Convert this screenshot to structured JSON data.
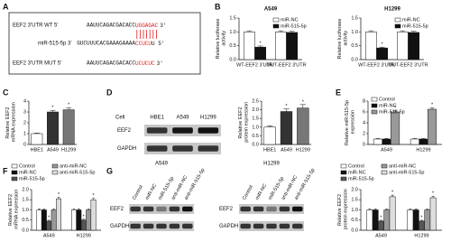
{
  "panel_labels": [
    "A",
    "B",
    "C",
    "D",
    "E",
    "F",
    "G"
  ],
  "sequences": [
    {
      "label": "EEF2 3'UTR WT 5'",
      "before": "AAUUCAGACGACACC",
      "site": "UGGAGAC",
      "after": "3'"
    },
    {
      "label": "miR-515-5p 3'",
      "before": "GUCUUUCACGAAAGAAAA",
      "site": "CCUCU",
      "after": "U 5'"
    },
    {
      "label": "EEF2 3'UTR MUT 5'",
      "before": "AAUUCAGACGACACC",
      "site": "UCUCUC",
      "after": "3'"
    }
  ],
  "blots": [
    {
      "column_label": "Cell",
      "lanes": [
        "HBE1",
        "A549",
        "H1299"
      ],
      "rows": [
        "EEF2",
        "GAPDH"
      ]
    },
    {
      "title": "A549",
      "lanes": [
        "Control",
        "miR-NC",
        "miR-515-5p",
        "anti-miR-NC",
        "anti-miR-515-5p"
      ],
      "rows": [
        "EEF2",
        "GAPDH"
      ]
    },
    {
      "title": "H1299",
      "lanes": [
        "Control",
        "miR-NC",
        "miR-515-5p",
        "anti-miR-NC",
        "anti-miR-515-5p"
      ],
      "rows": [
        "EEF2",
        "GAPDH"
      ]
    }
  ],
  "chart_data": [
    {
      "type": "bar",
      "title": "A549",
      "y_label": "Relative luciferase activity",
      "categories": [
        "WT-EEF2 3'UTR",
        "MUT-EEF2 3'UTR"
      ],
      "series": [
        {
          "name": "miR-NC",
          "color": "#ffffff",
          "values": [
            1.0,
            1.0
          ],
          "errors": [
            0.04,
            0.04
          ]
        },
        {
          "name": "miR-515-5p",
          "color": "#111111",
          "values": [
            0.45,
            0.98
          ],
          "errors": [
            0.04,
            0.04
          ]
        }
      ],
      "ylim": [
        0,
        1.5
      ],
      "yticks": [
        {
          "value": 0,
          "label": "0.0"
        },
        0.5,
        {
          "value": 1,
          "label": "1.0"
        },
        1.5
      ],
      "legend": "upper right",
      "annotations": [
        {
          "text": "*",
          "category": "WT-EEF2 3'UTR",
          "series": "miR-515-5p"
        }
      ]
    },
    {
      "type": "bar",
      "title": "H1299",
      "y_label": "Relative luciferase activity",
      "categories": [
        "WT-EEF2 3'UTR",
        "MUT-EEF2 3'UTR"
      ],
      "series": [
        {
          "name": "miR-NC",
          "color": "#ffffff",
          "values": [
            1.0,
            1.0
          ],
          "errors": [
            0.04,
            0.04
          ]
        },
        {
          "name": "miR-515-5p",
          "color": "#111111",
          "values": [
            0.42,
            0.98
          ],
          "errors": [
            0.03,
            0.04
          ]
        }
      ],
      "ylim": [
        0,
        1.5
      ],
      "yticks": [
        {
          "value": 0,
          "label": "0.0"
        },
        0.5,
        {
          "value": 1,
          "label": "1.0"
        },
        1.5
      ],
      "legend": "upper right",
      "annotations": [
        {
          "text": "*",
          "category": "WT-EEF2 3'UTR",
          "series": "miR-515-5p"
        }
      ]
    },
    {
      "type": "bar",
      "y_label": "Relative EEF2 mRNA expression",
      "categories": [
        "HBE1",
        "A549",
        "H1299"
      ],
      "values": [
        1.0,
        3.0,
        3.2
      ],
      "errors": [
        0.05,
        0.15,
        0.2
      ],
      "colors": [
        "#ffffff",
        "#333333",
        "#777777"
      ],
      "ylim": [
        0,
        4
      ],
      "yticks": [
        0,
        1,
        2,
        3,
        4
      ],
      "annotations": [
        {
          "text": "*",
          "category": "A549"
        },
        {
          "text": "*",
          "category": "H1299"
        }
      ]
    },
    {
      "type": "bar",
      "y_label": "Relative EEF2 protein expression",
      "categories": [
        "HBE1",
        "A549",
        "H1299"
      ],
      "values": [
        1.0,
        1.9,
        2.1
      ],
      "errors": [
        0.08,
        0.15,
        0.2
      ],
      "colors": [
        "#ffffff",
        "#333333",
        "#777777"
      ],
      "ylim": [
        0,
        2.5
      ],
      "yticks": [
        {
          "value": 0,
          "label": "0.0"
        },
        0.5,
        {
          "value": 1,
          "label": "1.0"
        },
        1.5,
        {
          "value": 2,
          "label": "2.0"
        },
        2.5
      ],
      "annotations": [
        {
          "text": "*",
          "category": "A549"
        },
        {
          "text": "*",
          "category": "H1299"
        }
      ]
    },
    {
      "type": "bar",
      "y_label": "Relative miR-515-5p expression",
      "categories": [
        "A549",
        "H1299"
      ],
      "series": [
        {
          "name": "Control",
          "color": "#ffffff",
          "values": [
            1.0,
            1.0
          ],
          "errors": [
            0.1,
            0.1
          ]
        },
        {
          "name": "miR-NC",
          "color": "#111111",
          "values": [
            1.0,
            1.0
          ],
          "errors": [
            0.1,
            0.1
          ]
        },
        {
          "name": "miR-515-5p",
          "color": "#999999",
          "values": [
            6.0,
            6.5
          ],
          "errors": [
            0.3,
            0.3
          ]
        }
      ],
      "ylim": [
        0,
        8
      ],
      "yticks": [
        0,
        2,
        4,
        6,
        8
      ],
      "legend": "upper left",
      "annotations": [
        {
          "text": "*",
          "category": "A549",
          "series": "miR-515-5p"
        },
        {
          "text": "*",
          "category": "H1299",
          "series": "miR-515-5p"
        }
      ]
    },
    {
      "type": "bar",
      "y_label": "Relative EEF2 mRNA expression",
      "categories": [
        "A549",
        "H1299"
      ],
      "series": [
        {
          "name": "Control",
          "color": "#ffffff",
          "values": [
            1.0,
            1.0
          ],
          "errors": [
            0.05,
            0.05
          ]
        },
        {
          "name": "miR-NC",
          "color": "#111111",
          "values": [
            1.0,
            1.0
          ],
          "errors": [
            0.05,
            0.05
          ]
        },
        {
          "name": "miR-515-5p",
          "color": "#555555",
          "values": [
            0.45,
            0.5
          ],
          "errors": [
            0.04,
            0.04
          ]
        },
        {
          "name": "anti-miR-NC",
          "color": "#999999",
          "values": [
            1.0,
            1.0
          ],
          "errors": [
            0.05,
            0.05
          ]
        },
        {
          "name": "anti-miR-515-5p",
          "color": "#dddddd",
          "values": [
            1.55,
            1.5
          ],
          "errors": [
            0.08,
            0.08
          ]
        }
      ],
      "ylim": [
        0,
        2
      ],
      "yticks": [
        {
          "value": 0,
          "label": "0.0"
        },
        0.5,
        {
          "value": 1,
          "label": "1.0"
        },
        1.5,
        {
          "value": 2,
          "label": "2.0"
        }
      ],
      "legend": "above",
      "annotations": [
        {
          "text": "*",
          "category": "A549",
          "series": "miR-515-5p"
        },
        {
          "text": "*",
          "category": "A549",
          "series": "anti-miR-515-5p"
        },
        {
          "text": "*",
          "category": "H1299",
          "series": "miR-515-5p"
        },
        {
          "text": "*",
          "category": "H1299",
          "series": "anti-miR-515-5p"
        }
      ]
    },
    {
      "type": "bar",
      "y_label": "Relative EEF2 protein expression",
      "categories": [
        "A549",
        "H1299"
      ],
      "series": [
        {
          "name": "Control",
          "color": "#ffffff",
          "values": [
            1.0,
            1.0
          ],
          "errors": [
            0.05,
            0.05
          ]
        },
        {
          "name": "miR-NC",
          "color": "#111111",
          "values": [
            1.0,
            1.0
          ],
          "errors": [
            0.05,
            0.05
          ]
        },
        {
          "name": "miR-515-5p",
          "color": "#555555",
          "values": [
            0.45,
            0.45
          ],
          "errors": [
            0.04,
            0.04
          ]
        },
        {
          "name": "anti-miR-NC",
          "color": "#999999",
          "values": [
            1.0,
            1.0
          ],
          "errors": [
            0.05,
            0.05
          ]
        },
        {
          "name": "anti-miR-515-5p",
          "color": "#dddddd",
          "values": [
            1.65,
            1.6
          ],
          "errors": [
            0.08,
            0.08
          ]
        }
      ],
      "ylim": [
        0,
        2
      ],
      "yticks": [
        {
          "value": 0,
          "label": "0.0"
        },
        0.5,
        {
          "value": 1,
          "label": "1.0"
        },
        1.5,
        {
          "value": 2,
          "label": "2.0"
        }
      ],
      "legend": "above",
      "annotations": [
        {
          "text": "*",
          "category": "A549",
          "series": "miR-515-5p"
        },
        {
          "text": "*",
          "category": "A549",
          "series": "anti-miR-515-5p"
        },
        {
          "text": "*",
          "category": "H1299",
          "series": "miR-515-5p"
        },
        {
          "text": "*",
          "category": "H1299",
          "series": "anti-miR-515-5p"
        }
      ]
    }
  ]
}
